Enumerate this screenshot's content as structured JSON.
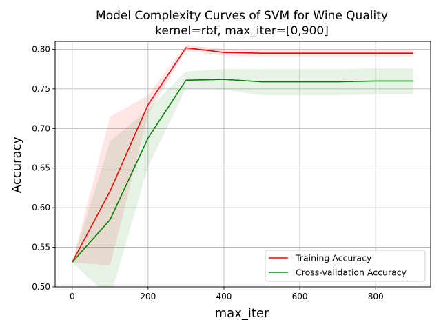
{
  "chart_data": {
    "type": "line",
    "title_line1": "Model Complexity Curves of SVM for Wine Quality",
    "title_line2": "kernel=rbf, max_iter=[0,900]",
    "xlabel": "max_iter",
    "ylabel": "Accuracy",
    "xlim": [
      -45,
      945
    ],
    "ylim": [
      0.5,
      0.81
    ],
    "xticks": [
      0,
      200,
      400,
      600,
      800
    ],
    "yticks": [
      0.5,
      0.55,
      0.6,
      0.65,
      0.7,
      0.75,
      0.8
    ],
    "ytick_labels": [
      "0.50",
      "0.55",
      "0.60",
      "0.65",
      "0.70",
      "0.75",
      "0.80"
    ],
    "grid": true,
    "legend_position": "lower-right",
    "x": [
      0,
      100,
      200,
      300,
      400,
      500,
      600,
      700,
      800,
      900
    ],
    "series": [
      {
        "name": "Training Accuracy",
        "color": "#ff0000",
        "values": [
          0.531,
          0.621,
          0.73,
          0.802,
          0.796,
          0.795,
          0.795,
          0.795,
          0.795,
          0.795
        ],
        "band_upper": [
          0.531,
          0.715,
          0.742,
          0.806,
          0.8,
          0.799,
          0.799,
          0.799,
          0.799,
          0.799
        ],
        "band_lower": [
          0.531,
          0.527,
          0.718,
          0.798,
          0.792,
          0.791,
          0.791,
          0.791,
          0.791,
          0.791
        ],
        "band_color": "#ff0000"
      },
      {
        "name": "Cross-validation Accuracy",
        "color": "#008000",
        "values": [
          0.531,
          0.585,
          0.688,
          0.761,
          0.762,
          0.759,
          0.759,
          0.759,
          0.76,
          0.76
        ],
        "band_upper": [
          0.531,
          0.684,
          0.724,
          0.772,
          0.775,
          0.775,
          0.775,
          0.775,
          0.776,
          0.776
        ],
        "band_lower": [
          0.531,
          0.486,
          0.652,
          0.75,
          0.749,
          0.742,
          0.742,
          0.742,
          0.743,
          0.743
        ],
        "band_color": "#008000"
      }
    ]
  }
}
